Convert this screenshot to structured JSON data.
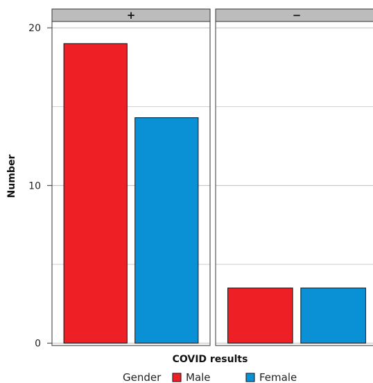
{
  "chart_data": {
    "type": "bar",
    "facet_variable": "COVID results",
    "panels": [
      {
        "label": "+",
        "categories": [
          "Male",
          "Female"
        ],
        "values": [
          19,
          14.3
        ]
      },
      {
        "label": "−",
        "categories": [
          "Male",
          "Female"
        ],
        "values": [
          3.5,
          3.5
        ]
      }
    ],
    "series": [
      {
        "name": "Male",
        "color": "#ee1f25"
      },
      {
        "name": "Female",
        "color": "#0a91d5"
      }
    ],
    "y_ticks": [
      0,
      10,
      20
    ],
    "ylim": [
      -0.15,
      20.4
    ],
    "xlabel": "COVID results",
    "ylabel": "Number",
    "legend": {
      "title": "Gender",
      "position": "bottom",
      "items": [
        "Male",
        "Female"
      ]
    },
    "grid": true,
    "strip_color": "#bcbcbc"
  }
}
